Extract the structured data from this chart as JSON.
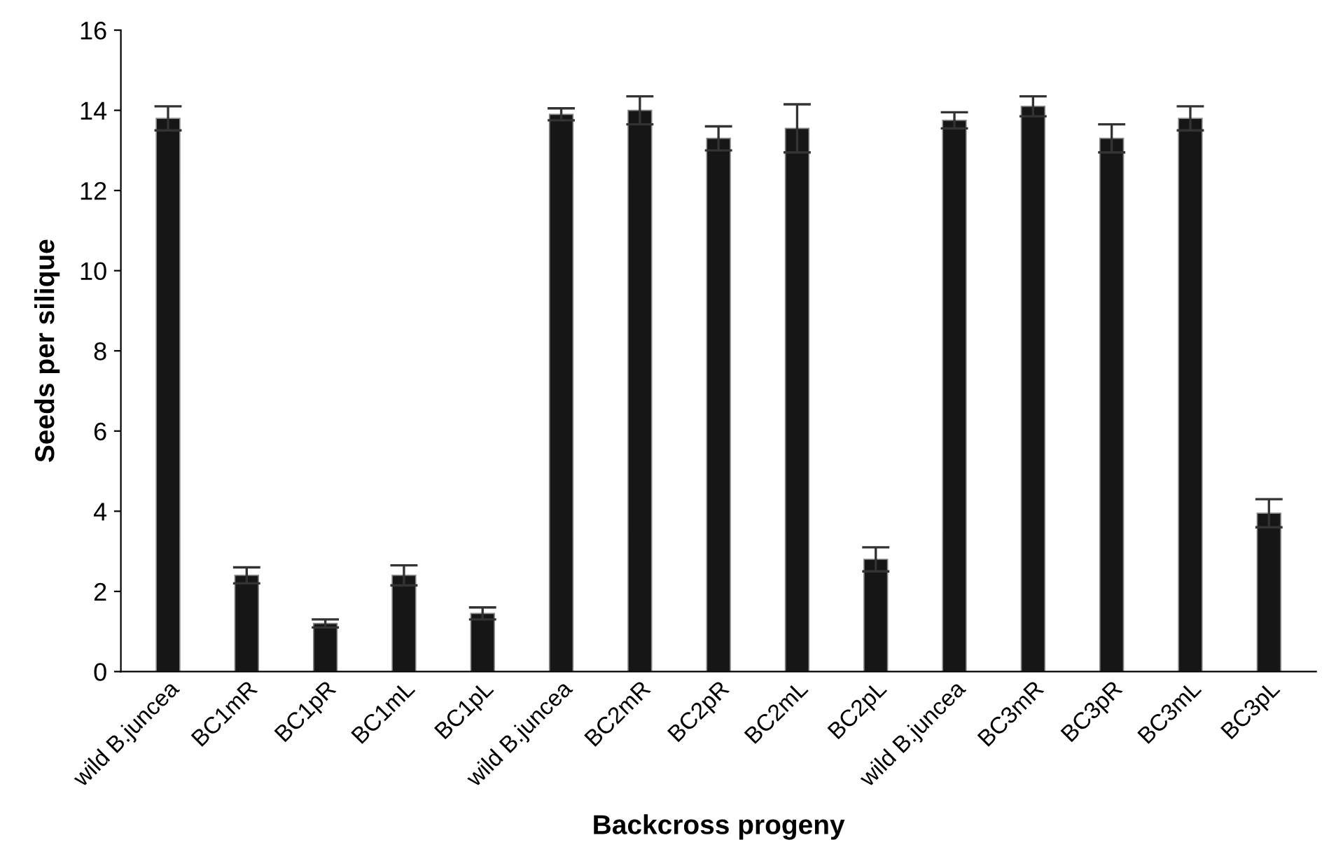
{
  "chart_data": {
    "type": "bar",
    "xlabel": "Backcross progeny",
    "ylabel": "Seeds per silique",
    "categories": [
      "wild B.juncea",
      "BC1mR",
      "BC1pR",
      "BC1mL",
      "BC1pL",
      "wild B.juncea",
      "BC2mR",
      "BC2pR",
      "BC2mL",
      "BC2pL",
      "wild B.juncea",
      "BC3mR",
      "BC3pR",
      "BC3mL",
      "BC3pL"
    ],
    "values": [
      13.8,
      2.4,
      1.2,
      2.4,
      1.45,
      13.9,
      14.0,
      13.3,
      13.55,
      2.8,
      13.75,
      14.1,
      13.3,
      13.8,
      3.95
    ],
    "errors": [
      0.3,
      0.2,
      0.1,
      0.25,
      0.15,
      0.15,
      0.35,
      0.3,
      0.6,
      0.3,
      0.2,
      0.25,
      0.35,
      0.3,
      0.35
    ],
    "color": "#161616",
    "ylim": [
      0,
      16
    ],
    "yticks": [
      0,
      2,
      4,
      6,
      8,
      10,
      12,
      14,
      16
    ],
    "grid": false
  }
}
